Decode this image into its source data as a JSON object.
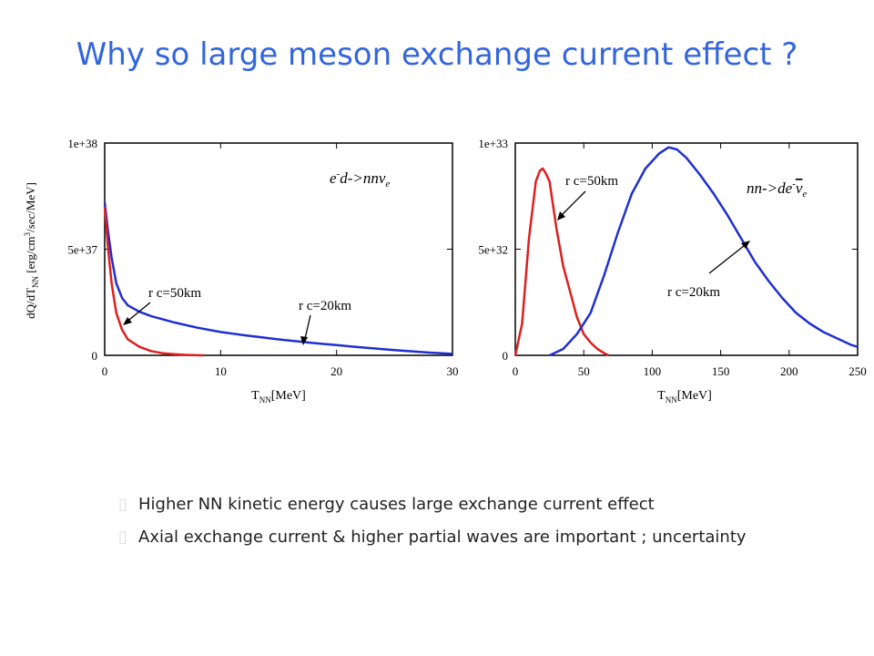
{
  "slide": {
    "title": "Why so large meson exchange current effect ?"
  },
  "bullets": [
    "Higher NN kinetic energy causes large exchange current effect",
    "Axial exchange current & higher partial waves are important ; uncertainty"
  ],
  "colors": {
    "title": "#3366dd",
    "blue_curve": "#1f2fd0",
    "red_curve": "#dd1f1f"
  },
  "chart_data": [
    {
      "type": "line",
      "ylabel": "dQ/dT_NN [erg/cm^3/sec/MeV]",
      "xlabel": "T_NN[MeV]",
      "xlim": [
        0,
        30
      ],
      "ylim": [
        0,
        1e+38
      ],
      "xticks": [
        "0",
        "10",
        "20",
        "30"
      ],
      "yticks": [
        "0",
        "5e+37",
        "1e+38"
      ],
      "reaction": "e⁻d->nnνe",
      "annotations": [
        "rc=50km",
        "rc=20km"
      ],
      "series": [
        {
          "name": "rc=20km",
          "color": "#1f2fd0",
          "x": [
            0,
            0.3,
            0.6,
            1,
            1.5,
            2,
            3,
            4,
            5,
            6,
            8,
            10,
            12,
            15,
            18,
            20,
            22,
            25,
            28,
            30
          ],
          "y": [
            7.2e+37,
            5.8e+37,
            4.6e+37,
            3.4e+37,
            2.7e+37,
            2.35e+37,
            2.05e+37,
            1.85e+37,
            1.7e+37,
            1.55e+37,
            1.3e+37,
            1.1e+37,
            9.5e+36,
            7.5e+36,
            5.8e+36,
            4.8e+36,
            3.8e+36,
            2.5e+36,
            1.3e+36,
            7e+35
          ]
        },
        {
          "name": "rc=50km",
          "color": "#dd1f1f",
          "x": [
            0,
            0.3,
            0.6,
            1,
            1.5,
            2,
            3,
            4,
            5,
            6,
            7,
            8,
            8.5
          ],
          "y": [
            7e+37,
            5e+37,
            3.4e+37,
            2e+37,
            1.2e+37,
            7.5e+36,
            4e+36,
            2e+36,
            1e+36,
            5e+35,
            2e+35,
            5e+34,
            0
          ]
        }
      ]
    },
    {
      "type": "line",
      "ylabel": "",
      "xlabel": "T_NN[MeV]",
      "xlim": [
        0,
        250
      ],
      "ylim": [
        0,
        1e+33
      ],
      "xticks": [
        "0",
        "50",
        "100",
        "150",
        "200",
        "250"
      ],
      "yticks": [
        "0",
        "5e+32",
        "1e+33"
      ],
      "reaction": "nn->de⁻ν̄e",
      "annotations": [
        "rc=50km",
        "rc=20km"
      ],
      "series": [
        {
          "name": "rc=50km",
          "color": "#dd1f1f",
          "x": [
            0,
            5,
            10,
            15,
            18,
            20,
            22,
            25,
            30,
            35,
            40,
            45,
            50,
            55,
            60,
            65,
            68
          ],
          "y": [
            0,
            1.5e+32,
            5.5e+32,
            8.2e+32,
            8.7e+32,
            8.8e+32,
            8.6e+32,
            8.2e+32,
            6e+32,
            4.2e+32,
            3e+32,
            1.8e+32,
            1e+32,
            6e+31,
            3e+31,
            1e+31,
            0
          ]
        },
        {
          "name": "rc=20km",
          "color": "#1f2fd0",
          "x": [
            25,
            35,
            45,
            55,
            65,
            75,
            85,
            95,
            105,
            112,
            118,
            125,
            135,
            145,
            155,
            165,
            175,
            185,
            195,
            205,
            215,
            225,
            235,
            245,
            250
          ],
          "y": [
            0,
            3e+31,
            1e+32,
            2e+32,
            3.8e+32,
            5.8e+32,
            7.6e+32,
            8.8e+32,
            9.5e+32,
            9.8e+32,
            9.7e+32,
            9.3e+32,
            8.5e+32,
            7.6e+32,
            6.6e+32,
            5.5e+32,
            4.4e+32,
            3.5e+32,
            2.7e+32,
            2e+32,
            1.5e+32,
            1.1e+32,
            8e+31,
            5e+31,
            4e+31
          ]
        }
      ]
    }
  ]
}
